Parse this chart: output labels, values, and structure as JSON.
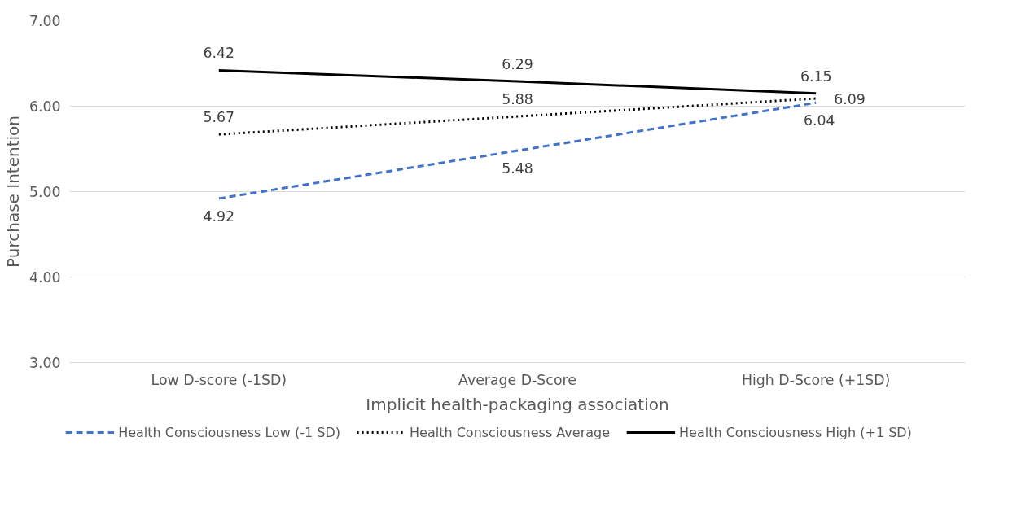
{
  "chart_data": {
    "type": "line",
    "xlabel": "Implicit health-packaging association",
    "ylabel": "Purchase Intention",
    "categories": [
      "Low D-score (-1SD)",
      "Average D-Score",
      "High D-Score (+1SD)"
    ],
    "series": [
      {
        "name": "Health Consciousness Low (-1 SD)",
        "color": "#4472c4",
        "line_style": "dashed",
        "values": [
          4.92,
          5.48,
          6.04
        ]
      },
      {
        "name": "Health Consciousness Average",
        "color": "#000000",
        "line_style": "dotted",
        "values": [
          5.67,
          5.88,
          6.09
        ]
      },
      {
        "name": "Health Consciousness High (+1 SD)",
        "color": "#000000",
        "line_style": "solid",
        "values": [
          6.42,
          6.29,
          6.15
        ]
      }
    ],
    "ylim": [
      3,
      7
    ],
    "yticks": [
      {
        "value": 3,
        "label": "3.00"
      },
      {
        "value": 4,
        "label": "4.00"
      },
      {
        "value": 5,
        "label": "5.00"
      },
      {
        "value": 6,
        "label": "6.00"
      },
      {
        "value": 7,
        "label": "7.00"
      }
    ],
    "grid": "y",
    "legend": "bottom",
    "data_labels": true,
    "marker": "none"
  }
}
